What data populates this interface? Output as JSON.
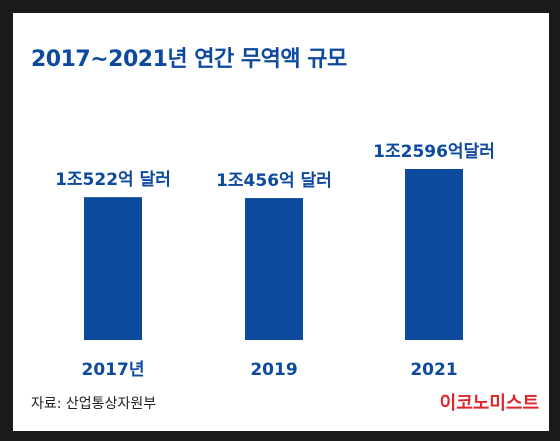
{
  "title": "2017~2021년 연간 무역액 규모",
  "source": "자료: 산업통상자원부",
  "brand": "이코노미스트",
  "colors": {
    "bar": "#0d4a9e",
    "title": "#0d4a9e",
    "brand": "#e0252b",
    "frame": "#1a1a1a"
  },
  "chart_data": {
    "type": "bar",
    "categories": [
      "2017년",
      "2019",
      "2021"
    ],
    "values": [
      10522,
      10456,
      12596
    ],
    "value_labels": [
      "1조522억 달러",
      "1조456억 달러",
      "1조2596억달러"
    ],
    "unit": "억 달러",
    "title": "2017~2021년 연간 무역액 규모",
    "xlabel": "",
    "ylabel": "",
    "grid": false,
    "legend": "none"
  }
}
